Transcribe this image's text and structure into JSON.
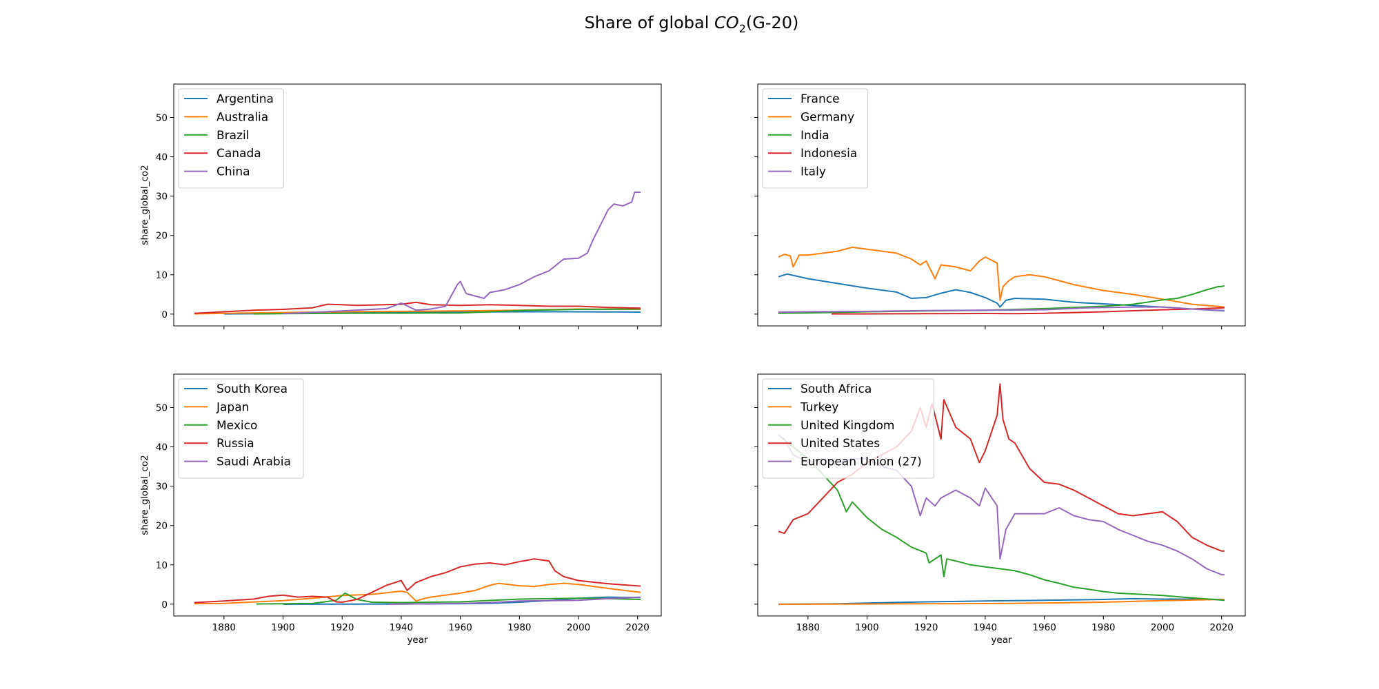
{
  "suptitle": {
    "prefix": "Share of global ",
    "chem_main": "CO",
    "chem_sub": "2",
    "suffix": "(G-20)"
  },
  "chart_data": [
    {
      "type": "line",
      "xlabel": "",
      "ylabel": "share_global_co2",
      "xlim": [
        1863,
        2028
      ],
      "ylim": [
        -3,
        58.5
      ],
      "xticks": [
        1880,
        1900,
        1920,
        1940,
        1960,
        1980,
        2000,
        2020
      ],
      "yticks": [
        0,
        10,
        20,
        30,
        40,
        50
      ],
      "show_xticklabels": false,
      "show_yticklabels": true,
      "legend": "upper left",
      "series": [
        {
          "name": "Argentina",
          "color": "#1f77b4",
          "x": [
            1880,
            1900,
            1920,
            1940,
            1960,
            1980,
            2000,
            2021
          ],
          "y": [
            0.05,
            0.15,
            0.3,
            0.4,
            0.5,
            0.6,
            0.6,
            0.5
          ]
        },
        {
          "name": "Australia",
          "color": "#ff7f0e",
          "x": [
            1870,
            1880,
            1900,
            1920,
            1940,
            1960,
            1980,
            2000,
            2021
          ],
          "y": [
            0.05,
            0.2,
            0.4,
            0.6,
            0.7,
            0.8,
            1.0,
            1.3,
            1.2
          ]
        },
        {
          "name": "Brazil",
          "color": "#2ca02c",
          "x": [
            1890,
            1900,
            1920,
            1940,
            1960,
            1980,
            2000,
            2021
          ],
          "y": [
            0.05,
            0.1,
            0.2,
            0.25,
            0.3,
            0.9,
            1.2,
            1.3
          ]
        },
        {
          "name": "Canada",
          "color": "#d62728",
          "x": [
            1870,
            1880,
            1890,
            1900,
            1910,
            1915,
            1920,
            1925,
            1930,
            1940,
            1945,
            1950,
            1960,
            1970,
            1980,
            1990,
            2000,
            2010,
            2021
          ],
          "y": [
            0.2,
            0.6,
            1.0,
            1.2,
            1.6,
            2.5,
            2.4,
            2.2,
            2.3,
            2.5,
            3.0,
            2.4,
            2.2,
            2.4,
            2.2,
            2.0,
            2.0,
            1.7,
            1.5
          ]
        },
        {
          "name": "China",
          "color": "#9467bd",
          "x": [
            1900,
            1920,
            1935,
            1940,
            1945,
            1950,
            1955,
            1959,
            1960,
            1962,
            1965,
            1968,
            1970,
            1975,
            1980,
            1985,
            1990,
            1995,
            2000,
            2003,
            2005,
            2008,
            2010,
            2012,
            2015,
            2018,
            2019,
            2021
          ],
          "y": [
            0.1,
            0.8,
            1.4,
            2.8,
            1.0,
            1.3,
            2.0,
            7.5,
            8.3,
            5.2,
            4.6,
            4.0,
            5.5,
            6.2,
            7.5,
            9.5,
            11.0,
            14.0,
            14.2,
            15.5,
            19.0,
            23.5,
            26.5,
            28.0,
            27.5,
            28.5,
            31.0,
            31.0
          ]
        }
      ]
    },
    {
      "type": "line",
      "xlabel": "",
      "ylabel": "",
      "xlim": [
        1863,
        2028
      ],
      "ylim": [
        -3,
        58.5
      ],
      "xticks": [
        1880,
        1900,
        1920,
        1940,
        1960,
        1980,
        2000,
        2020
      ],
      "yticks": [
        0,
        10,
        20,
        30,
        40,
        50
      ],
      "show_xticklabels": false,
      "show_yticklabels": false,
      "legend": "upper left",
      "series": [
        {
          "name": "France",
          "color": "#1f77b4",
          "x": [
            1870,
            1873,
            1880,
            1890,
            1900,
            1910,
            1915,
            1920,
            1925,
            1930,
            1935,
            1940,
            1944,
            1945,
            1947,
            1950,
            1960,
            1970,
            1980,
            1990,
            2000,
            2010,
            2021
          ],
          "y": [
            9.5,
            10.2,
            9.0,
            7.8,
            6.6,
            5.6,
            4.0,
            4.2,
            5.3,
            6.2,
            5.5,
            4.2,
            2.8,
            1.8,
            3.5,
            4.0,
            3.8,
            3.0,
            2.6,
            2.2,
            1.8,
            1.3,
            0.8
          ]
        },
        {
          "name": "Germany",
          "color": "#ff7f0e",
          "x": [
            1870,
            1872,
            1874,
            1875,
            1877,
            1880,
            1890,
            1895,
            1900,
            1905,
            1910,
            1915,
            1918,
            1920,
            1923,
            1925,
            1930,
            1935,
            1938,
            1940,
            1944,
            1945,
            1946,
            1948,
            1950,
            1955,
            1960,
            1965,
            1970,
            1980,
            1990,
            2000,
            2010,
            2021
          ],
          "y": [
            14.5,
            15.2,
            14.8,
            12.0,
            15.0,
            15.0,
            16.0,
            17.0,
            16.5,
            16.0,
            15.5,
            14.0,
            12.5,
            13.5,
            9.0,
            12.5,
            12.0,
            11.0,
            13.5,
            14.5,
            13.0,
            3.5,
            7.0,
            8.5,
            9.5,
            10.0,
            9.5,
            8.5,
            7.5,
            6.0,
            5.0,
            3.8,
            2.5,
            1.8
          ]
        },
        {
          "name": "India",
          "color": "#2ca02c",
          "x": [
            1870,
            1880,
            1900,
            1920,
            1940,
            1960,
            1980,
            1990,
            2000,
            2005,
            2010,
            2015,
            2019,
            2020,
            2021
          ],
          "y": [
            0.2,
            0.3,
            0.6,
            0.8,
            1.0,
            1.4,
            2.0,
            2.5,
            3.6,
            4.0,
            5.0,
            6.2,
            7.0,
            7.0,
            7.2
          ]
        },
        {
          "name": "Indonesia",
          "color": "#d62728",
          "x": [
            1888,
            1900,
            1920,
            1940,
            1950,
            1960,
            1980,
            2000,
            2010,
            2021
          ],
          "y": [
            0.05,
            0.05,
            0.1,
            0.15,
            0.1,
            0.2,
            0.6,
            1.1,
            1.3,
            1.6
          ]
        },
        {
          "name": "Italy",
          "color": "#9467bd",
          "x": [
            1870,
            1880,
            1900,
            1920,
            1940,
            1960,
            1975,
            1990,
            2000,
            2010,
            2021
          ],
          "y": [
            0.5,
            0.6,
            0.7,
            0.9,
            1.0,
            1.1,
            1.6,
            1.8,
            1.8,
            1.3,
            0.9
          ]
        }
      ]
    },
    {
      "type": "line",
      "xlabel": "year",
      "ylabel": "share_global_co2",
      "xlim": [
        1863,
        2028
      ],
      "ylim": [
        -3,
        58.5
      ],
      "xticks": [
        1880,
        1900,
        1920,
        1940,
        1960,
        1980,
        2000,
        2020
      ],
      "yticks": [
        0,
        10,
        20,
        30,
        40,
        50
      ],
      "show_xticklabels": true,
      "show_yticklabels": true,
      "legend": "upper left",
      "series": [
        {
          "name": "South Korea",
          "color": "#1f77b4",
          "x": [
            1900,
            1940,
            1960,
            1970,
            1980,
            1990,
            2000,
            2010,
            2021
          ],
          "y": [
            0.0,
            0.05,
            0.1,
            0.2,
            0.5,
            0.9,
            1.5,
            1.8,
            1.7
          ]
        },
        {
          "name": "Japan",
          "color": "#ff7f0e",
          "x": [
            1870,
            1880,
            1900,
            1910,
            1920,
            1930,
            1940,
            1942,
            1945,
            1948,
            1950,
            1960,
            1965,
            1970,
            1973,
            1980,
            1985,
            1990,
            1995,
            2000,
            2010,
            2021
          ],
          "y": [
            0.1,
            0.2,
            0.9,
            1.5,
            2.2,
            2.5,
            3.3,
            3.0,
            0.8,
            1.5,
            1.8,
            2.8,
            3.5,
            4.8,
            5.3,
            4.7,
            4.5,
            5.0,
            5.3,
            5.0,
            4.0,
            3.0
          ]
        },
        {
          "name": "Mexico",
          "color": "#2ca02c",
          "x": [
            1891,
            1900,
            1910,
            1918,
            1921,
            1925,
            1930,
            1940,
            1960,
            1980,
            2000,
            2010,
            2021
          ],
          "y": [
            0.05,
            0.1,
            0.2,
            1.0,
            2.8,
            1.2,
            0.5,
            0.4,
            0.6,
            1.3,
            1.5,
            1.4,
            1.2
          ]
        },
        {
          "name": "Russia",
          "color": "#d62728",
          "x": [
            1870,
            1880,
            1890,
            1895,
            1900,
            1905,
            1910,
            1915,
            1918,
            1920,
            1925,
            1930,
            1935,
            1940,
            1942,
            1945,
            1950,
            1955,
            1960,
            1965,
            1970,
            1975,
            1980,
            1985,
            1990,
            1992,
            1995,
            2000,
            2010,
            2021
          ],
          "y": [
            0.4,
            0.8,
            1.3,
            2.0,
            2.3,
            1.8,
            2.0,
            1.8,
            0.6,
            0.5,
            1.2,
            3.0,
            4.8,
            6.0,
            3.5,
            5.5,
            7.0,
            8.0,
            9.5,
            10.2,
            10.5,
            10.0,
            10.8,
            11.5,
            11.0,
            8.5,
            7.0,
            6.0,
            5.2,
            4.6
          ]
        },
        {
          "name": "Saudi Arabia",
          "color": "#9467bd",
          "x": [
            1936,
            1950,
            1960,
            1970,
            1980,
            1990,
            2000,
            2010,
            2021
          ],
          "y": [
            0.0,
            0.1,
            0.2,
            0.4,
            0.8,
            0.9,
            1.0,
            1.4,
            1.8
          ]
        }
      ]
    },
    {
      "type": "line",
      "xlabel": "year",
      "ylabel": "",
      "xlim": [
        1863,
        2028
      ],
      "ylim": [
        -3,
        58.5
      ],
      "xticks": [
        1880,
        1900,
        1920,
        1940,
        1960,
        1980,
        2000,
        2020
      ],
      "yticks": [
        0,
        10,
        20,
        30,
        40,
        50
      ],
      "show_xticklabels": true,
      "show_yticklabels": false,
      "legend": "upper left",
      "series": [
        {
          "name": "South Africa",
          "color": "#1f77b4",
          "x": [
            1870,
            1880,
            1890,
            1900,
            1920,
            1940,
            1960,
            1980,
            1990,
            2000,
            2010,
            2021
          ],
          "y": [
            0.0,
            0.05,
            0.1,
            0.3,
            0.6,
            0.8,
            1.0,
            1.2,
            1.4,
            1.3,
            1.3,
            1.2
          ]
        },
        {
          "name": "Turkey",
          "color": "#ff7f0e",
          "x": [
            1870,
            1900,
            1920,
            1940,
            1960,
            1980,
            2000,
            2021
          ],
          "y": [
            0.0,
            0.05,
            0.1,
            0.15,
            0.3,
            0.5,
            0.9,
            1.2
          ]
        },
        {
          "name": "United Kingdom",
          "color": "#2ca02c",
          "x": [
            1870,
            1875,
            1880,
            1885,
            1890,
            1893,
            1895,
            1900,
            1905,
            1910,
            1915,
            1920,
            1921,
            1925,
            1926,
            1927,
            1930,
            1935,
            1940,
            1945,
            1950,
            1955,
            1960,
            1965,
            1970,
            1975,
            1980,
            1985,
            1990,
            2000,
            2010,
            2021
          ],
          "y": [
            43.0,
            40.0,
            37.0,
            33.0,
            29.0,
            23.5,
            26.0,
            22.0,
            19.0,
            17.0,
            14.5,
            13.0,
            10.5,
            12.5,
            7.0,
            11.5,
            11.0,
            10.0,
            9.5,
            9.0,
            8.5,
            7.5,
            6.2,
            5.3,
            4.3,
            3.8,
            3.2,
            2.8,
            2.6,
            2.2,
            1.6,
            1.0
          ]
        },
        {
          "name": "United States",
          "color": "#d62728",
          "x": [
            1870,
            1872,
            1875,
            1880,
            1885,
            1890,
            1895,
            1900,
            1905,
            1910,
            1915,
            1918,
            1920,
            1922,
            1925,
            1926,
            1930,
            1935,
            1938,
            1940,
            1944,
            1945,
            1946,
            1948,
            1950,
            1955,
            1960,
            1965,
            1970,
            1975,
            1980,
            1985,
            1990,
            1995,
            2000,
            2005,
            2010,
            2015,
            2020,
            2021
          ],
          "y": [
            18.5,
            18.0,
            21.5,
            23.0,
            27.0,
            31.0,
            33.0,
            36.0,
            38.0,
            40.0,
            44.0,
            50.0,
            45.0,
            51.0,
            42.0,
            52.0,
            45.0,
            42.0,
            36.0,
            39.0,
            48.0,
            56.0,
            47.0,
            42.0,
            41.0,
            34.5,
            31.0,
            30.5,
            29.0,
            27.0,
            25.0,
            23.0,
            22.5,
            23.0,
            23.5,
            21.0,
            17.0,
            15.0,
            13.5,
            13.5
          ]
        },
        {
          "name": "European Union (27)",
          "color": "#9467bd",
          "x": [
            1870,
            1872,
            1875,
            1880,
            1885,
            1890,
            1895,
            1900,
            1905,
            1910,
            1915,
            1918,
            1920,
            1923,
            1925,
            1930,
            1935,
            1938,
            1940,
            1944,
            1945,
            1947,
            1950,
            1955,
            1960,
            1965,
            1970,
            1975,
            1980,
            1985,
            1990,
            1995,
            2000,
            2005,
            2010,
            2015,
            2020,
            2021
          ],
          "y": [
            43.0,
            42.0,
            38.0,
            36.0,
            37.0,
            36.0,
            37.0,
            37.0,
            35.0,
            34.0,
            30.0,
            22.5,
            27.0,
            25.0,
            27.0,
            29.0,
            27.0,
            25.0,
            29.5,
            25.0,
            11.5,
            19.0,
            23.0,
            23.0,
            23.0,
            24.5,
            22.5,
            21.5,
            21.0,
            19.0,
            17.5,
            16.0,
            15.0,
            13.5,
            11.5,
            9.0,
            7.5,
            7.5
          ]
        }
      ]
    }
  ]
}
